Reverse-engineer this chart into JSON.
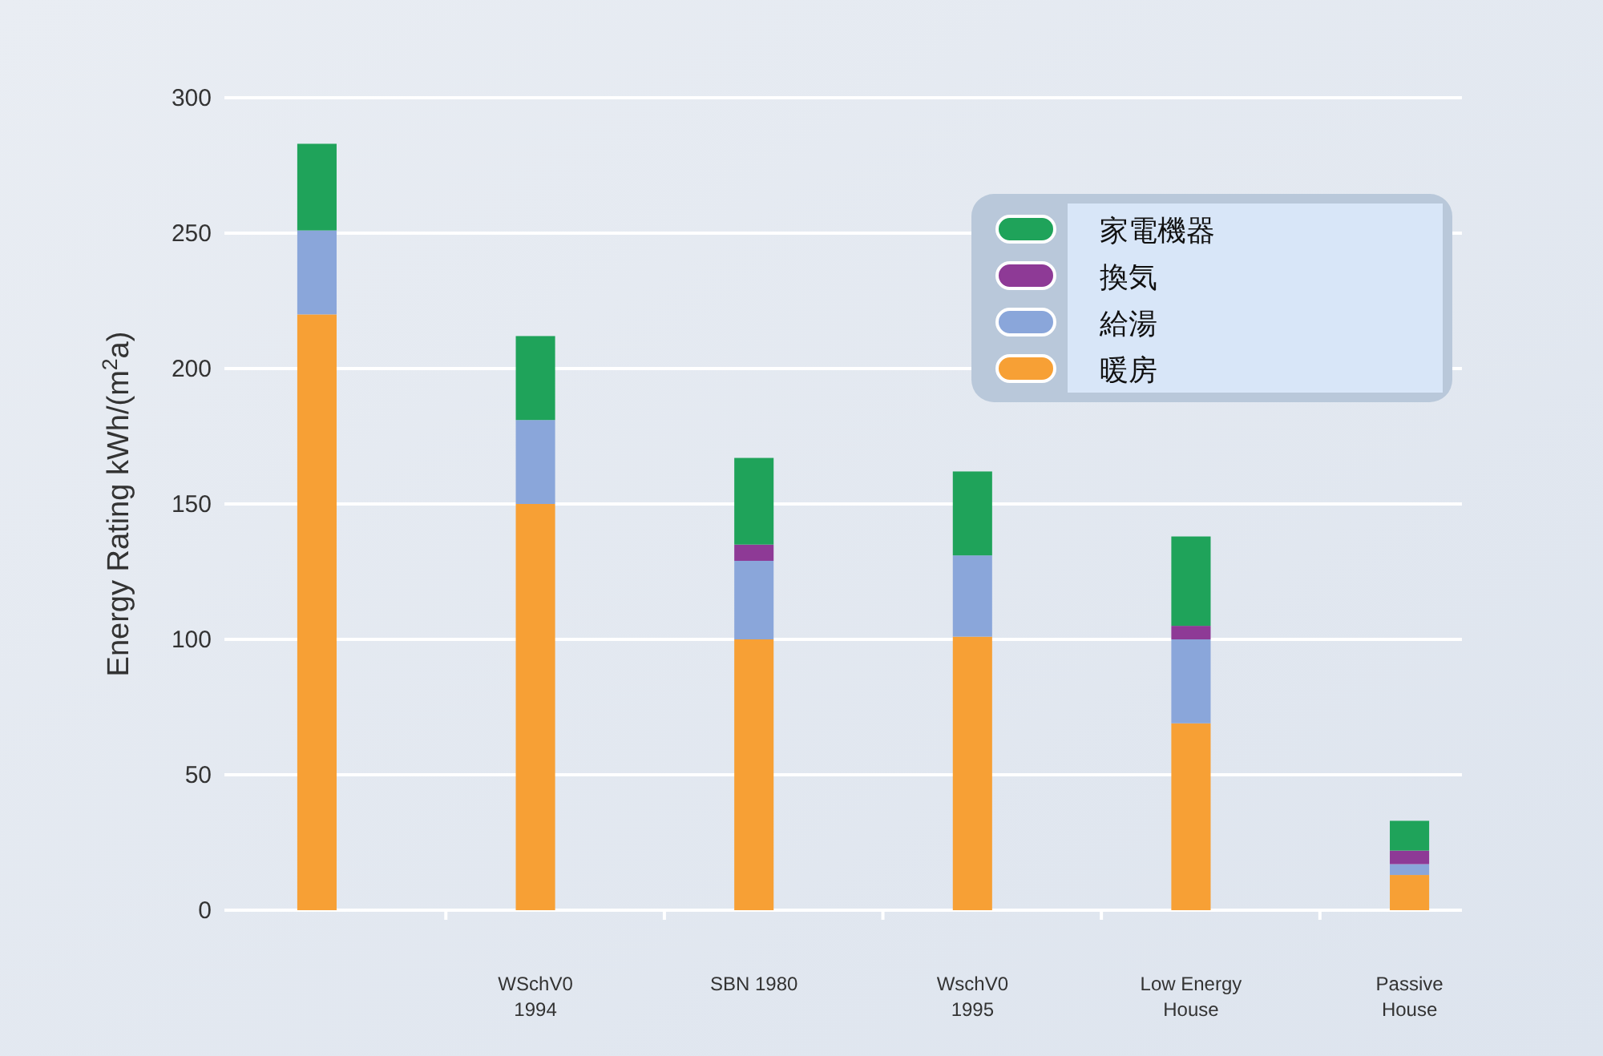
{
  "chart_data": {
    "type": "bar",
    "stacked": true,
    "ylabel": "Energy Rating kWh/(m$^{2}$a)",
    "categories": [
      null,
      "WSchV0\n1994",
      "SBN 1980",
      "WschV0\n1995",
      "Low Energy\nHouse",
      "Passive\nHouse"
    ],
    "series": [
      {
        "name": "暖房",
        "color": "#f7a035",
        "values": [
          220,
          150,
          100,
          101,
          69,
          13
        ]
      },
      {
        "name": "給湯",
        "color": "#8aa6da",
        "values": [
          31,
          31,
          29,
          30,
          31,
          4
        ]
      },
      {
        "name": "換気",
        "color": "#8e3a96",
        "values": [
          0,
          0,
          6,
          0,
          5,
          5
        ]
      },
      {
        "name": "家電機器",
        "color": "#1fa35a",
        "values": [
          32,
          31,
          32,
          31,
          33,
          11
        ]
      }
    ],
    "ylim": [
      0,
      300
    ],
    "yticks": [
      0,
      50,
      100,
      150,
      200,
      250,
      300
    ],
    "grid": "y",
    "legend": "top right"
  }
}
